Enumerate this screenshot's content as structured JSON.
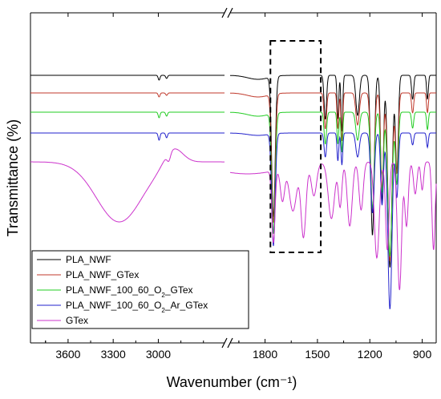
{
  "chart_data": {
    "type": "line",
    "title": "",
    "xlabel": "Wavenumber (cm⁻¹)",
    "ylabel": "Transmittance (%)",
    "x_axis_reversed": true,
    "x_axis_broken": true,
    "x_segments": [
      {
        "xlim": [
          3850,
          2560
        ],
        "ticks": [
          3600,
          3300,
          3000
        ]
      },
      {
        "xlim": [
          2000,
          820
        ],
        "ticks": [
          1800,
          1500,
          1200,
          900
        ]
      }
    ],
    "y_ticks_labeled": false,
    "grid": false,
    "legend_position": "bottom-left",
    "highlight_box": {
      "x_range": [
        1760,
        1490
      ],
      "style": "dashed"
    },
    "series": [
      {
        "name": "PLA_NWF",
        "color": "#000000"
      },
      {
        "name": "PLA_NWF_GTex",
        "color": "#c0392b"
      },
      {
        "name": "PLA_NWF_100_60_O2_GTex",
        "color": "#22cc22"
      },
      {
        "name": "PLA_NWF_100_60_O2_Ar_GTex",
        "color": "#2222cc"
      },
      {
        "name": "GTex",
        "color": "#cc33cc"
      }
    ]
  },
  "legend": {
    "entries": [
      {
        "label": "PLA_NWF",
        "color": "#000000"
      },
      {
        "label": "PLA_NWF_GTex",
        "color": "#c0392b"
      },
      {
        "label": "PLA_NWF_100_60_O",
        "sub": "2",
        "tail": "_GTex",
        "color": "#22cc22"
      },
      {
        "label": "PLA_NWF_100_60_O",
        "sub": "2",
        "tail": "_Ar_GTex",
        "color": "#2222cc"
      },
      {
        "label": "GTex",
        "color": "#cc33cc"
      }
    ]
  }
}
